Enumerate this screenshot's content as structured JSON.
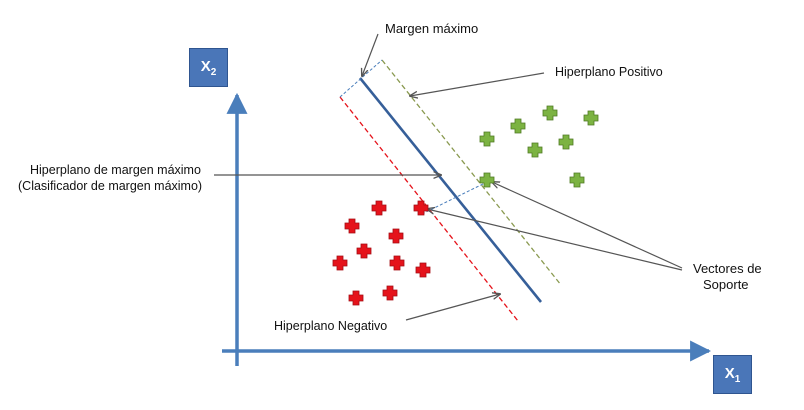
{
  "labels": {
    "margin": "Margen máximo",
    "positive_hyperplane": "Hiperplano Positivo",
    "max_margin_line1": "Hiperplano de margen máximo",
    "max_margin_line2": "(Clasificador de margen máximo)",
    "support_vectors_line1": "Vectores de",
    "support_vectors_line2": "Soporte",
    "negative_hyperplane": "Hiperplano Negativo"
  },
  "axes": {
    "x_name": "X",
    "x_sub": "1",
    "y_name": "X",
    "y_sub": "2"
  },
  "colors": {
    "axis": "#4a7ebb",
    "axis_box": "#4a76b8",
    "classifier": "#365f99",
    "positive": "#7cb342",
    "negative": "#e5131b",
    "positive_plane": "#8a9a50",
    "negative_plane": "#e5131b",
    "margin_lines": "#4a7ebb",
    "arrows": "#555555"
  },
  "icons": {
    "positive_point": "green-plus-icon",
    "negative_point": "red-plus-icon"
  }
}
